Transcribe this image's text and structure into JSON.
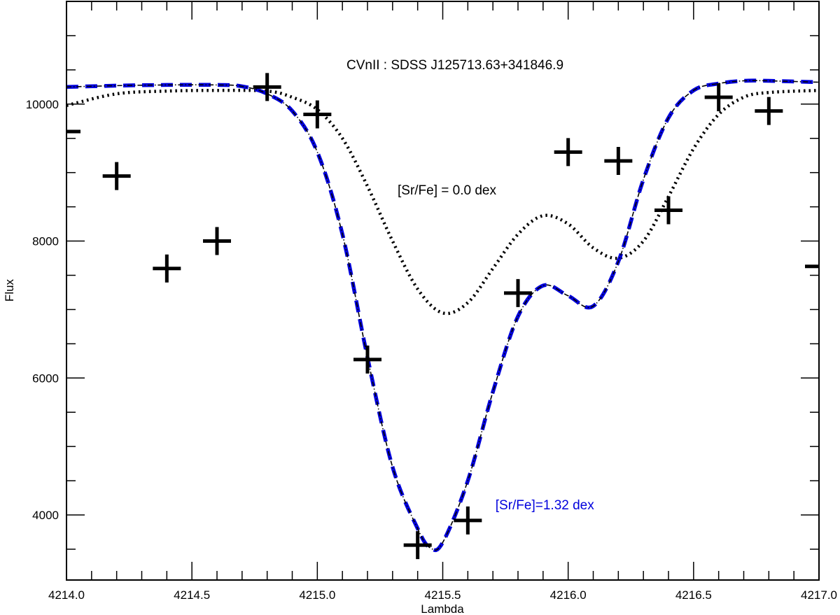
{
  "chart_data": {
    "type": "line",
    "title": "CVnII : SDSS J125713.63+341846.9",
    "xlabel": "Lambda",
    "ylabel": "Flux",
    "xlim": [
      4214.0,
      4217.0
    ],
    "ylim": [
      3050,
      11500
    ],
    "x_ticks": [
      "4214.0",
      "4214.5",
      "4215.0",
      "4215.5",
      "4216.0",
      "4216.5",
      "4217.0"
    ],
    "x_tick_values": [
      4214.0,
      4214.5,
      4215.0,
      4215.5,
      4216.0,
      4216.5,
      4217.0
    ],
    "x_minor_step": 0.1,
    "y_ticks": [
      "4000",
      "6000",
      "8000",
      "10000"
    ],
    "y_tick_values": [
      4000,
      6000,
      8000,
      10000
    ],
    "y_minor_step": 500,
    "grid": false,
    "series": [
      {
        "style": "observed-plus-markers",
        "color": "#000000",
        "x": [
          4214.0,
          4214.2,
          4214.4,
          4214.6,
          4214.8,
          4215.0,
          4215.2,
          4215.4,
          4215.6,
          4215.8,
          4216.0,
          4216.2,
          4216.4,
          4216.6,
          4216.8,
          4217.0
        ],
        "y": [
          9600,
          8950,
          7600,
          8000,
          10250,
          9850,
          6270,
          3560,
          3920,
          7240,
          9300,
          9170,
          8450,
          10100,
          9900,
          7630
        ]
      },
      {
        "style": "dotted-model",
        "color": "#000000",
        "x": [
          4214.0,
          4214.2,
          4214.4,
          4214.6,
          4214.8,
          4214.9,
          4215.0,
          4215.1,
          4215.2,
          4215.3,
          4215.4,
          4215.5,
          4215.6,
          4215.7,
          4215.8,
          4215.9,
          4216.0,
          4216.1,
          4216.2,
          4216.3,
          4216.4,
          4216.5,
          4216.6,
          4216.7,
          4216.8,
          4217.0
        ],
        "y": [
          9980,
          10150,
          10190,
          10200,
          10190,
          10100,
          9920,
          9500,
          8800,
          8000,
          7300,
          6950,
          7100,
          7600,
          8100,
          8370,
          8250,
          7900,
          7750,
          8000,
          8650,
          9350,
          9850,
          10100,
          10170,
          10200
        ]
      },
      {
        "style": "blue-dashed-model",
        "color": "#0000dd",
        "x": [
          4214.0,
          4214.2,
          4214.4,
          4214.6,
          4214.7,
          4214.8,
          4214.9,
          4215.0,
          4215.1,
          4215.2,
          4215.3,
          4215.4,
          4215.45,
          4215.5,
          4215.6,
          4215.7,
          4215.8,
          4215.9,
          4216.0,
          4216.1,
          4216.2,
          4216.3,
          4216.4,
          4216.5,
          4216.6,
          4216.7,
          4216.8,
          4217.0
        ],
        "y": [
          10250,
          10270,
          10280,
          10280,
          10260,
          10150,
          9900,
          9300,
          8100,
          6300,
          4700,
          3800,
          3520,
          3600,
          4500,
          5800,
          6900,
          7350,
          7200,
          7050,
          7700,
          8900,
          9800,
          10200,
          10300,
          10340,
          10340,
          10320
        ]
      },
      {
        "style": "thin-dash-dot-model",
        "color": "#000000",
        "x": [
          4214.0,
          4214.2,
          4214.4,
          4214.6,
          4214.7,
          4214.8,
          4214.9,
          4215.0,
          4215.1,
          4215.2,
          4215.3,
          4215.4,
          4215.45,
          4215.5,
          4215.6,
          4215.7,
          4215.8,
          4215.9,
          4216.0,
          4216.1,
          4216.2,
          4216.3,
          4216.4,
          4216.5,
          4216.6,
          4216.7,
          4216.8,
          4217.0
        ],
        "y": [
          10250,
          10270,
          10280,
          10280,
          10260,
          10150,
          9900,
          9300,
          8100,
          6300,
          4700,
          3800,
          3520,
          3600,
          4500,
          5800,
          6900,
          7350,
          7200,
          7050,
          7700,
          8900,
          9800,
          10200,
          10300,
          10340,
          10340,
          10320
        ]
      }
    ],
    "annotations": [
      {
        "text": "[Sr/Fe] = 0.0 dex",
        "x": 4215.32,
        "y": 8680,
        "color": "#000000"
      },
      {
        "text": "[Sr/Fe]=1.32 dex",
        "x": 4215.71,
        "y": 4080,
        "color": "#0000dd"
      }
    ]
  }
}
